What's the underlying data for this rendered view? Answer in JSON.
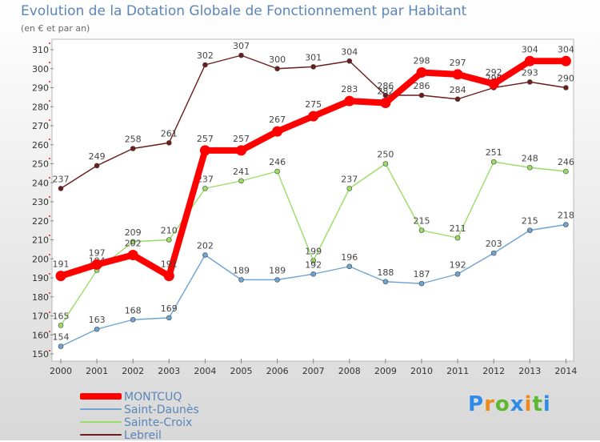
{
  "chart_data": {
    "type": "line",
    "title": "Evolution de la Dotation Globale de Fonctionnement par Habitant",
    "subtitle": "(en € et par an)",
    "x": [
      "2000",
      "2001",
      "2002",
      "2003",
      "2004",
      "2005",
      "2006",
      "2007",
      "2008",
      "2009",
      "2010",
      "2011",
      "2012",
      "2013",
      "2014"
    ],
    "ylim": [
      150,
      310
    ],
    "yticks": [
      150,
      160,
      170,
      180,
      190,
      200,
      210,
      220,
      230,
      240,
      250,
      260,
      270,
      280,
      290,
      300,
      310
    ],
    "grid": false,
    "legend_position": "bottom-left",
    "series": [
      {
        "name": "Lebreil",
        "color": "#6b1c1c",
        "values": [
          237,
          249,
          258,
          261,
          302,
          307,
          300,
          301,
          304,
          286,
          286,
          284,
          290,
          293,
          290
        ]
      },
      {
        "name": "Sainte-Croix",
        "color": "#99dd66",
        "values": [
          165,
          194,
          209,
          210,
          237,
          241,
          246,
          199,
          237,
          250,
          215,
          211,
          251,
          248,
          246
        ]
      },
      {
        "name": "Saint-Daunès",
        "color": "#6fa3d2",
        "values": [
          154,
          163,
          168,
          169,
          202,
          189,
          189,
          192,
          196,
          188,
          187,
          192,
          203,
          215,
          218
        ]
      },
      {
        "name": "MONTCUQ",
        "color": "#ff0000",
        "values": [
          191,
          197,
          202,
          191,
          257,
          257,
          267,
          275,
          283,
          282,
          298,
          297,
          292,
          304,
          304
        ]
      }
    ],
    "legend_order": [
      "MONTCUQ",
      "Saint-Daunès",
      "Sainte-Croix",
      "Lebreil"
    ]
  },
  "logo": {
    "letters": [
      "P",
      "r",
      "o",
      "x",
      "i",
      "t",
      "i"
    ],
    "colors": [
      "#2e8be8",
      "#f08a1c",
      "#5cb82e",
      "#2e8be8",
      "#f08a1c",
      "#5cb82e",
      "#2e8be8"
    ]
  }
}
